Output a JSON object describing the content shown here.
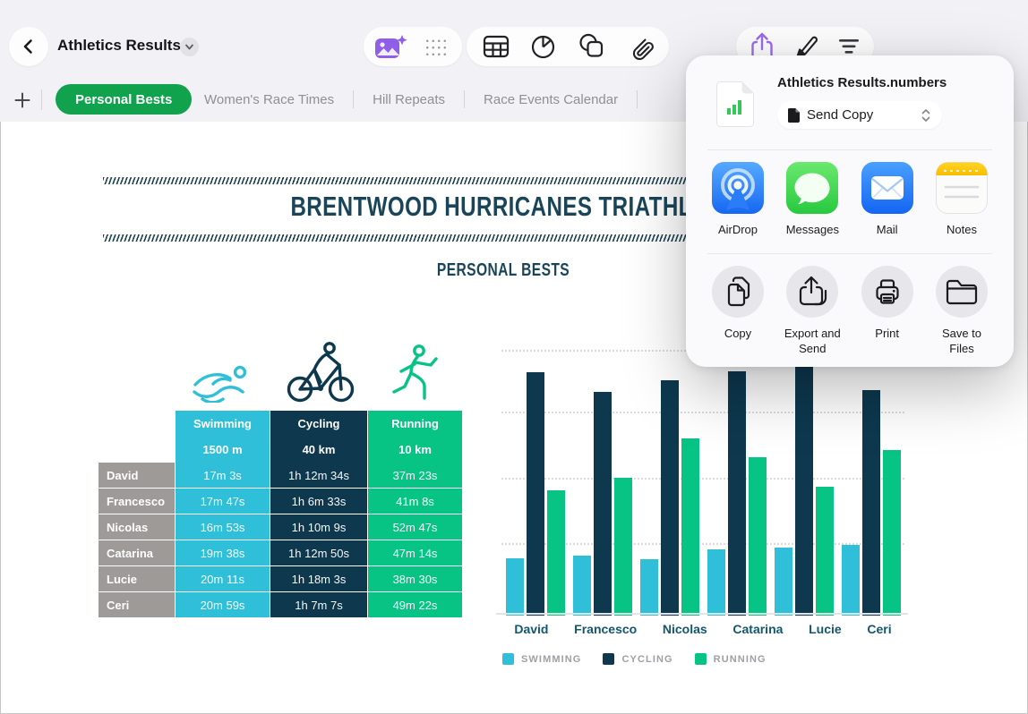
{
  "toolbar": {
    "document_title": "Athletics Results"
  },
  "tabs": {
    "active": "Personal Bests",
    "items": [
      "Personal Bests",
      "Women's Race Times",
      "Hill Repeats",
      "Race Events Calendar"
    ]
  },
  "share_popover": {
    "file_name": "Athletics Results.numbers",
    "send_option": "Send Copy",
    "apps": [
      {
        "label": "AirDrop"
      },
      {
        "label": "Messages"
      },
      {
        "label": "Mail"
      },
      {
        "label": "Notes"
      }
    ],
    "actions": [
      {
        "label": "Copy"
      },
      {
        "label": "Export and Send"
      },
      {
        "label": "Print"
      },
      {
        "label": "Save to Files"
      }
    ]
  },
  "sheet": {
    "title": "BRENTWOOD HURRICANES TRIATHLON",
    "subtitle": "PERSONAL BESTS"
  },
  "table": {
    "row_header_color": "#9E9A97",
    "columns": [
      {
        "label": "Swimming",
        "distance": "1500 m",
        "color": "#2FBFD9"
      },
      {
        "label": "Cycling",
        "distance": "40 km",
        "color": "#0D384E"
      },
      {
        "label": "Running",
        "distance": "10 km",
        "color": "#07C484"
      }
    ],
    "rows": [
      {
        "name": "David",
        "times": [
          "17m 3s",
          "1h 12m 34s",
          "37m 23s"
        ]
      },
      {
        "name": "Francesco",
        "times": [
          "17m 47s",
          "1h 6m 33s",
          "41m 8s"
        ]
      },
      {
        "name": "Nicolas",
        "times": [
          "16m 53s",
          "1h 10m 9s",
          "52m 47s"
        ]
      },
      {
        "name": "Catarina",
        "times": [
          "19m 38s",
          "1h 12m 50s",
          "47m 14s"
        ]
      },
      {
        "name": "Lucie",
        "times": [
          "20m 11s",
          "1h 18m 3s",
          "38m 30s"
        ]
      },
      {
        "name": "Ceri",
        "times": [
          "20m 59s",
          "1h 7m 7s",
          "49m 22s"
        ]
      }
    ]
  },
  "chart_data": {
    "type": "bar",
    "title": "",
    "xlabel": "",
    "ylabel": "",
    "unit": "minutes",
    "categories": [
      "David",
      "Francesco",
      "Nicolas",
      "Catarina",
      "Lucie",
      "Ceri"
    ],
    "series": [
      {
        "name": "SWIMMING",
        "color": "#2FBFD9",
        "values": [
          17.05,
          17.78,
          16.88,
          19.63,
          20.18,
          20.98
        ]
      },
      {
        "name": "CYCLING",
        "color": "#0D384E",
        "values": [
          72.57,
          66.55,
          70.15,
          72.83,
          78.05,
          67.12
        ]
      },
      {
        "name": "RUNNING",
        "color": "#07C484",
        "values": [
          37.38,
          41.13,
          52.78,
          47.23,
          38.5,
          49.37
        ]
      }
    ],
    "ylim": [
      0,
      80
    ],
    "gridline_step": 20,
    "grid": "dotted-horizontal",
    "y_tick_labels_visible": false,
    "legend_position": "bottom"
  }
}
